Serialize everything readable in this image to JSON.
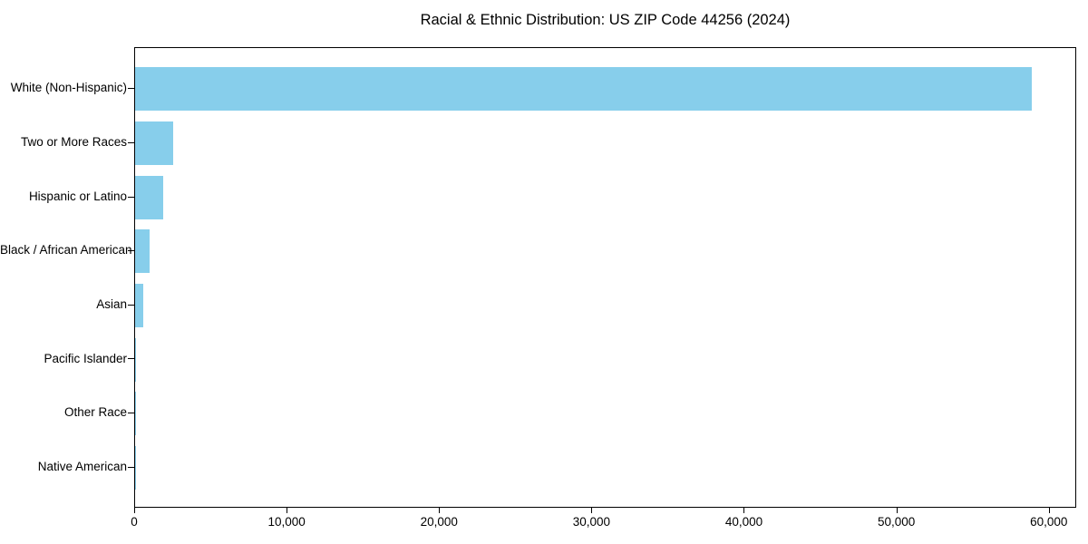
{
  "chart_data": {
    "type": "bar",
    "orientation": "horizontal",
    "title": "Racial & Ethnic Distribution: US ZIP Code 44256 (2024)",
    "categories": [
      "White (Non-Hispanic)",
      "Two or More Races",
      "Hispanic or Latino",
      "Black / African American",
      "Asian",
      "Pacific Islander",
      "Other Race",
      "Native American"
    ],
    "values": [
      58800,
      2500,
      1830,
      950,
      540,
      50,
      45,
      10
    ],
    "xlabel": "",
    "ylabel": "",
    "xlim": [
      0,
      61800
    ],
    "xticks": [
      {
        "value": 0,
        "label": "0"
      },
      {
        "value": 10000,
        "label": "10,000"
      },
      {
        "value": 20000,
        "label": "20,000"
      },
      {
        "value": 30000,
        "label": "30,000"
      },
      {
        "value": 40000,
        "label": "40,000"
      },
      {
        "value": 50000,
        "label": "50,000"
      },
      {
        "value": 60000,
        "label": "60,000"
      }
    ],
    "grid": false,
    "legend": null,
    "bar_color": "#87CEEB",
    "axis_color": "#000000",
    "background_color": "#ffffff"
  }
}
